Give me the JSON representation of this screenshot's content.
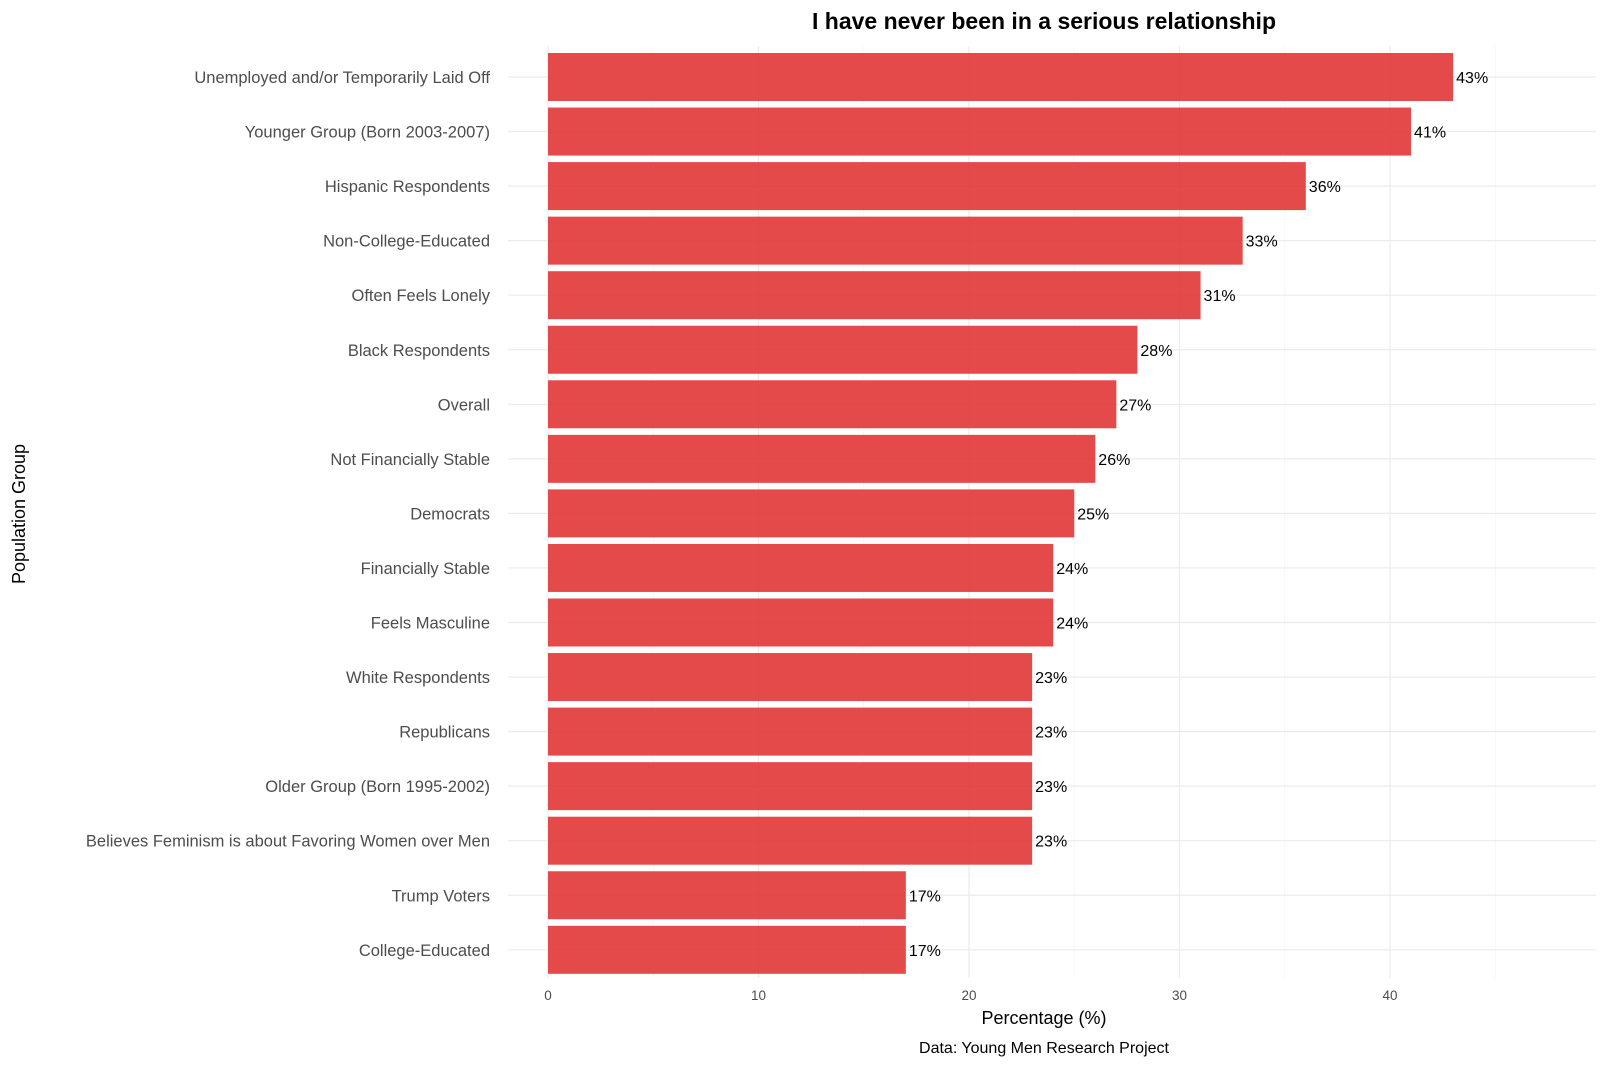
{
  "chart_data": {
    "type": "bar",
    "orientation": "horizontal",
    "title": "I have never been in a serious relationship",
    "xlabel": "Percentage (%)",
    "ylabel": "Population Group",
    "caption": "Data: Young Men Research Project",
    "xlim": [
      0,
      48
    ],
    "xticks": [
      0,
      10,
      20,
      30,
      40
    ],
    "grid": true,
    "bar_color": "#e03131",
    "categories": [
      "Unemployed and/or Temporarily Laid Off",
      "Younger Group (Born 2003-2007)",
      "Hispanic Respondents",
      "Non-College-Educated",
      "Often Feels Lonely",
      "Black Respondents",
      "Overall",
      "Not Financially Stable",
      "Democrats",
      "Financially Stable",
      "Feels Masculine",
      "White Respondents",
      "Republicans",
      "Older Group (Born 1995-2002)",
      "Believes Feminism is about Favoring Women over Men",
      "Trump Voters",
      "College-Educated"
    ],
    "values": [
      43,
      41,
      36,
      33,
      31,
      28,
      27,
      26,
      25,
      24,
      24,
      23,
      23,
      23,
      23,
      17,
      17
    ],
    "value_labels": [
      "43%",
      "41%",
      "36%",
      "33%",
      "31%",
      "28%",
      "27%",
      "26%",
      "25%",
      "24%",
      "24%",
      "23%",
      "23%",
      "23%",
      "23%",
      "17%",
      "17%"
    ]
  }
}
